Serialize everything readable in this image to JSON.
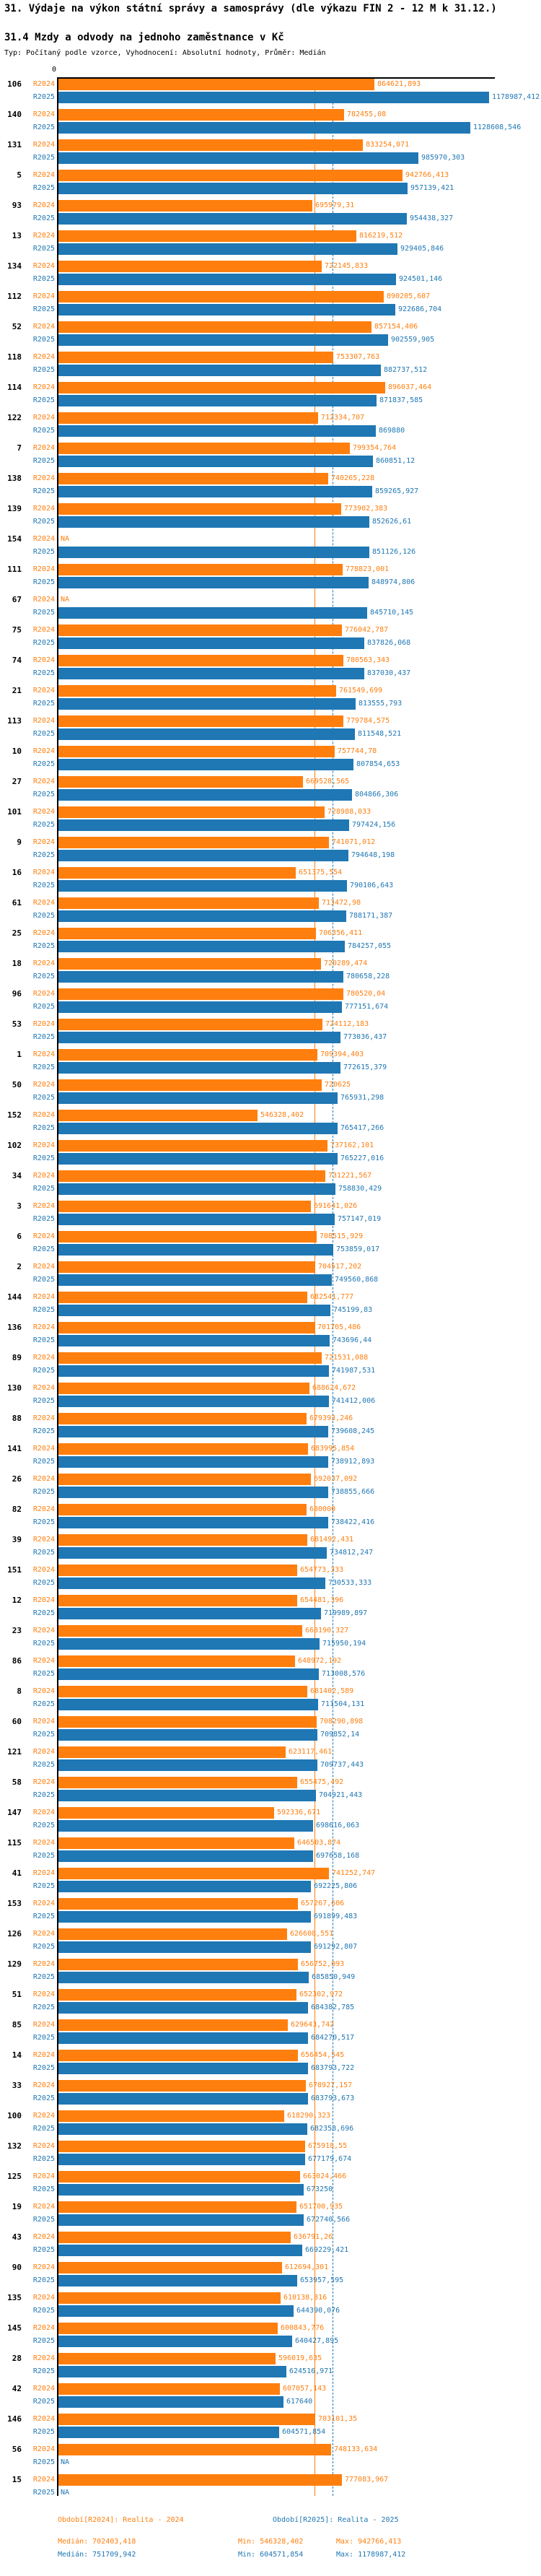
{
  "header": {
    "title": "31. Výdaje na výkon státní správy a samosprávy (dle výkazu FIN 2 - 12 M k 31.12.)",
    "subtitle": "31.4 Mzdy a odvody na jednoho zaměstnance v Kč",
    "meta": "Typ: Počítaný podle vzorce, Vyhodnocení: Absolutní hodnoty, Průměr: Medián"
  },
  "colors": {
    "r2024": "#ff7f0e",
    "r2025": "#1f77b4",
    "axis": "#000000"
  },
  "chart_data": {
    "type": "bar",
    "orientation": "horizontal",
    "x_axis": {
      "zero_label": "0",
      "max_value": 1178987.412
    },
    "na_label": "NA",
    "series": [
      {
        "key": "r2024",
        "label": "R2024",
        "color": "#ff7f0e",
        "median": 702403.418
      },
      {
        "key": "r2025",
        "label": "R2025",
        "color": "#1f77b4",
        "median": 751709.942
      }
    ],
    "rows": [
      [
        "106",
        "864621,893",
        "1178987,412"
      ],
      [
        "140",
        "782455,08",
        "1128608,546"
      ],
      [
        "131",
        "833254,071",
        "985970,303"
      ],
      [
        "5",
        "942766,413",
        "957139,421"
      ],
      [
        "93",
        "695979,31",
        "954438,327"
      ],
      [
        "13",
        "816219,512",
        "929405,846"
      ],
      [
        "134",
        "722145,833",
        "924501,146"
      ],
      [
        "112",
        "890205,607",
        "922686,704"
      ],
      [
        "52",
        "857154,406",
        "902559,905"
      ],
      [
        "118",
        "753307,763",
        "882737,512"
      ],
      [
        "114",
        "896037,464",
        "871837,585"
      ],
      [
        "122",
        "712334,707",
        "869880"
      ],
      [
        "7",
        "799354,764",
        "860851,12"
      ],
      [
        "138",
        "740265,228",
        "859265,927"
      ],
      [
        "139",
        "773902,383",
        "852626,61"
      ],
      [
        "154",
        null,
        "851126,126"
      ],
      [
        "111",
        "778823,001",
        "848974,806"
      ],
      [
        "67",
        null,
        "845710,145"
      ],
      [
        "75",
        "776042,787",
        "837826,068"
      ],
      [
        "74",
        "780563,343",
        "837030,437"
      ],
      [
        "21",
        "761549,699",
        "813555,793"
      ],
      [
        "113",
        "779784,575",
        "811548,521"
      ],
      [
        "10",
        "757744,78",
        "807854,653"
      ],
      [
        "27",
        "669528,565",
        "804866,306"
      ],
      [
        "101",
        "728988,033",
        "797424,156"
      ],
      [
        "9",
        "741071,012",
        "794648,198"
      ],
      [
        "16",
        "651375,554",
        "790106,643"
      ],
      [
        "61",
        "713472,98",
        "788171,387"
      ],
      [
        "25",
        "706356,411",
        "784257,055"
      ],
      [
        "18",
        "720289,474",
        "780658,228"
      ],
      [
        "96",
        "780520,04",
        "777151,674"
      ],
      [
        "53",
        "724112,183",
        "773036,437"
      ],
      [
        "1",
        "709394,403",
        "772615,379"
      ],
      [
        "50",
        "720625",
        "765931,298"
      ],
      [
        "152",
        "546328,402",
        "765417,266"
      ],
      [
        "102",
        "737162,101",
        "765227,016"
      ],
      [
        "34",
        "731221,567",
        "758830,429"
      ],
      [
        "3",
        "691641,026",
        "757147,019"
      ],
      [
        "6",
        "708515,929",
        "753859,017"
      ],
      [
        "2",
        "704517,202",
        "749560,868"
      ],
      [
        "144",
        "682541,777",
        "745199,83"
      ],
      [
        "136",
        "701705,486",
        "743696,44"
      ],
      [
        "89",
        "721531,088",
        "741987,531"
      ],
      [
        "130",
        "688624,672",
        "741412,006"
      ],
      [
        "88",
        "679393,246",
        "739608,245"
      ],
      [
        "141",
        "683995,854",
        "738912,893"
      ],
      [
        "26",
        "692037,092",
        "738855,666"
      ],
      [
        "82",
        "680000",
        "738422,416"
      ],
      [
        "39",
        "681492,431",
        "734812,247"
      ],
      [
        "151",
        "654773,333",
        "730533,333"
      ],
      [
        "12",
        "654481,396",
        "719989,897"
      ],
      [
        "23",
        "668190,327",
        "715950,194"
      ],
      [
        "86",
        "648972,192",
        "713008,576"
      ],
      [
        "8",
        "681402,589",
        "711504,131"
      ],
      [
        "60",
        "708290,898",
        "709852,14"
      ],
      [
        "121",
        "623117,461",
        "709737,443"
      ],
      [
        "58",
        "655475,492",
        "704921,443"
      ],
      [
        "147",
        "592336,671",
        "698616,063"
      ],
      [
        "115",
        "646503,874",
        "697658,168"
      ],
      [
        "41",
        "741252,747",
        "692225,806"
      ],
      [
        "153",
        "657267,606",
        "691899,483"
      ],
      [
        "126",
        "626608,551",
        "691292,807"
      ],
      [
        "129",
        "656752,093",
        "685850,949"
      ],
      [
        "51",
        "652302,972",
        "684382,785"
      ],
      [
        "85",
        "629643,742",
        "684270,517"
      ],
      [
        "14",
        "656454,545",
        "683793,722"
      ],
      [
        "33",
        "678927,157",
        "683793,673"
      ],
      [
        "100",
        "618290,323",
        "682358,696"
      ],
      [
        "132",
        "675918,55",
        "677179,674"
      ],
      [
        "125",
        "663024,466",
        "673250"
      ],
      [
        "19",
        "651700,935",
        "672740,566"
      ],
      [
        "43",
        "636791,26",
        "669229,421"
      ],
      [
        "90",
        "612694,301",
        "653957,595"
      ],
      [
        "135",
        "610138,816",
        "644390,076"
      ],
      [
        "145",
        "600843,776",
        "640427,895"
      ],
      [
        "28",
        "596019,635",
        "624516,971"
      ],
      [
        "42",
        "607057,143",
        "617640"
      ],
      [
        "146",
        "703101,35",
        "604571,854"
      ],
      [
        "56",
        "748133,634",
        null
      ],
      [
        "15",
        "777083,967",
        null
      ]
    ]
  },
  "footer": {
    "legend_r2024": "Období[R2024]: Realita - 2024",
    "legend_r2025": "Období[R2025]: Realita - 2025",
    "stats_r2024": {
      "median": "Medián: 702403,418",
      "min": "Min: 546328,402",
      "max": "Max: 942766,413"
    },
    "stats_r2025": {
      "median": "Medián: 751709,942",
      "min": "Min: 604571,854",
      "max": "Max: 1178987,412"
    }
  }
}
